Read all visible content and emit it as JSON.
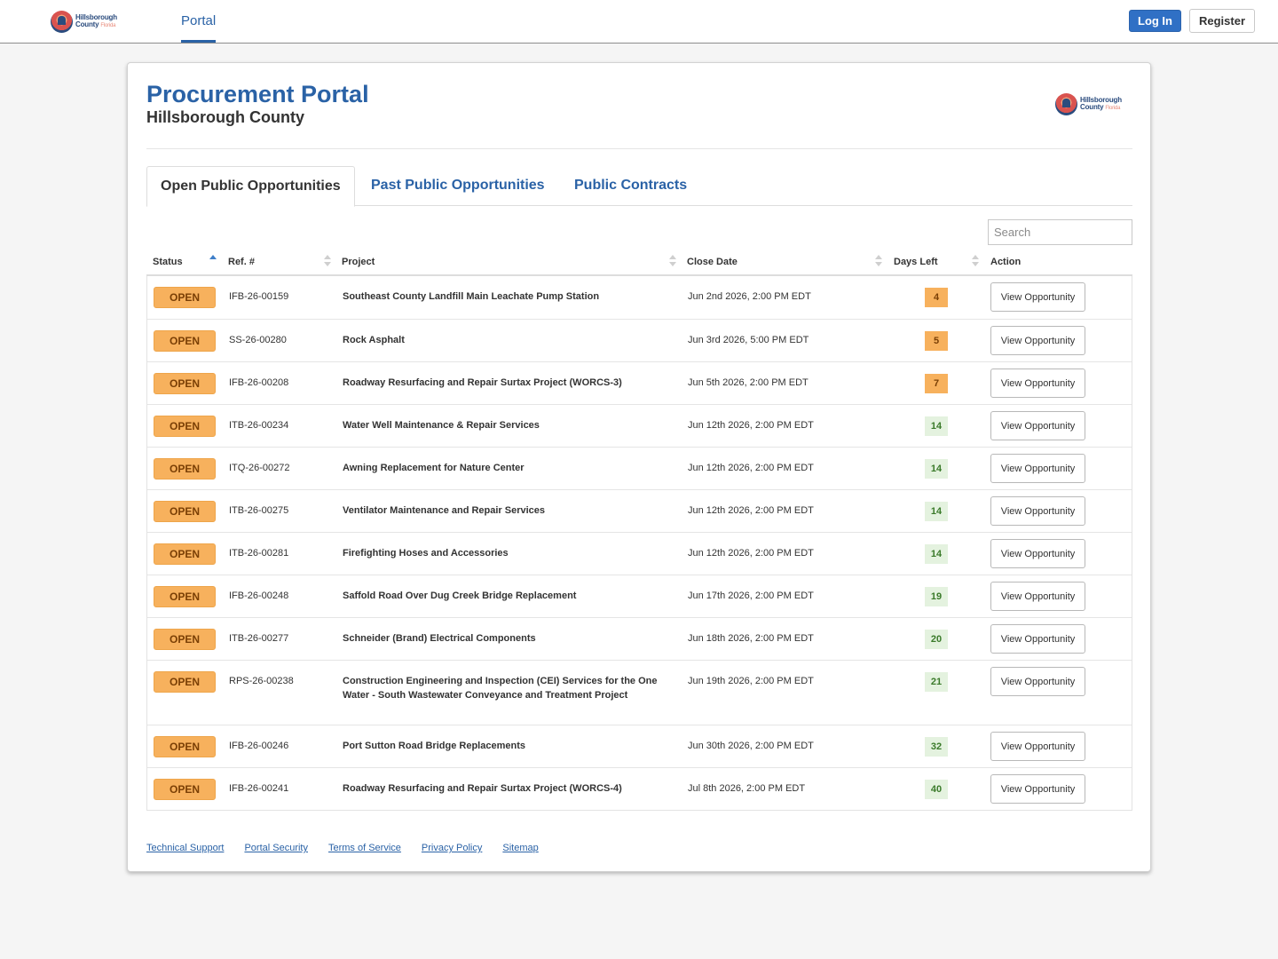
{
  "topnav": {
    "logo_line1": "Hillsborough",
    "logo_line2": "County",
    "logo_line3": "Florida",
    "portal_tab": "Portal",
    "login_label": "Log In",
    "register_label": "Register"
  },
  "header": {
    "title": "Procurement Portal",
    "subtitle": "Hillsborough County"
  },
  "tabs": [
    {
      "label": "Open Public Opportunities",
      "active": true
    },
    {
      "label": "Past Public Opportunities",
      "active": false
    },
    {
      "label": "Public Contracts",
      "active": false
    }
  ],
  "search": {
    "placeholder": "Search",
    "value": ""
  },
  "table": {
    "columns": [
      "Status",
      "Ref. #",
      "Project",
      "Close Date",
      "Days Left",
      "Action"
    ],
    "rows": [
      {
        "status": "OPEN",
        "ref": "IFB-26-00159",
        "project": "Southeast County Landfill Main Leachate Pump Station",
        "close_date": "Jun 2nd 2026, 2:00 PM EDT",
        "days_left": "4",
        "urgent": true,
        "action": "View Opportunity"
      },
      {
        "status": "OPEN",
        "ref": "SS-26-00280",
        "project": "Rock Asphalt",
        "close_date": "Jun 3rd 2026, 5:00 PM EDT",
        "days_left": "5",
        "urgent": true,
        "action": "View Opportunity"
      },
      {
        "status": "OPEN",
        "ref": "IFB-26-00208",
        "project": "Roadway Resurfacing and Repair Surtax Project (WORCS-3)",
        "close_date": "Jun 5th 2026, 2:00 PM EDT",
        "days_left": "7",
        "urgent": true,
        "action": "View Opportunity"
      },
      {
        "status": "OPEN",
        "ref": "ITB-26-00234",
        "project": "Water Well Maintenance & Repair Services",
        "close_date": "Jun 12th 2026, 2:00 PM EDT",
        "days_left": "14",
        "urgent": false,
        "action": "View Opportunity"
      },
      {
        "status": "OPEN",
        "ref": "ITQ-26-00272",
        "project": "Awning Replacement for Nature Center",
        "close_date": "Jun 12th 2026, 2:00 PM EDT",
        "days_left": "14",
        "urgent": false,
        "action": "View Opportunity"
      },
      {
        "status": "OPEN",
        "ref": "ITB-26-00275",
        "project": "Ventilator Maintenance and Repair Services",
        "close_date": "Jun 12th 2026, 2:00 PM EDT",
        "days_left": "14",
        "urgent": false,
        "action": "View Opportunity"
      },
      {
        "status": "OPEN",
        "ref": "ITB-26-00281",
        "project": "Firefighting Hoses and Accessories",
        "close_date": "Jun 12th 2026, 2:00 PM EDT",
        "days_left": "14",
        "urgent": false,
        "action": "View Opportunity"
      },
      {
        "status": "OPEN",
        "ref": "IFB-26-00248",
        "project": "Saffold Road Over Dug Creek Bridge Replacement",
        "close_date": "Jun 17th 2026, 2:00 PM EDT",
        "days_left": "19",
        "urgent": false,
        "action": "View Opportunity"
      },
      {
        "status": "OPEN",
        "ref": "ITB-26-00277",
        "project": "Schneider (Brand) Electrical Components",
        "close_date": "Jun 18th 2026, 2:00 PM EDT",
        "days_left": "20",
        "urgent": false,
        "action": "View Opportunity"
      },
      {
        "status": "OPEN",
        "ref": "RPS-26-00238",
        "project": "Construction Engineering and Inspection (CEI) Services for the One Water - South Wastewater Conveyance and Treatment Project",
        "close_date": "Jun 19th 2026, 2:00 PM EDT",
        "days_left": "21",
        "urgent": false,
        "action": "View Opportunity"
      },
      {
        "status": "OPEN",
        "ref": "IFB-26-00246",
        "project": "Port Sutton Road Bridge Replacements",
        "close_date": "Jun 30th 2026, 2:00 PM EDT",
        "days_left": "32",
        "urgent": false,
        "action": "View Opportunity"
      },
      {
        "status": "OPEN",
        "ref": "IFB-26-00241",
        "project": "Roadway Resurfacing and Repair Surtax Project (WORCS-4)",
        "close_date": "Jul 8th 2026, 2:00 PM EDT",
        "days_left": "40",
        "urgent": false,
        "action": "View Opportunity"
      }
    ]
  },
  "footer": {
    "links": [
      "Technical Support",
      "Portal Security",
      "Terms of Service",
      "Privacy Policy",
      "Sitemap"
    ]
  },
  "colors": {
    "brand_blue": "#2a62a6",
    "login_button": "#3070c5",
    "open_badge": "#f7b15d",
    "days_normal_bg": "#e4f2df",
    "days_normal_text": "#3a7a2a"
  }
}
